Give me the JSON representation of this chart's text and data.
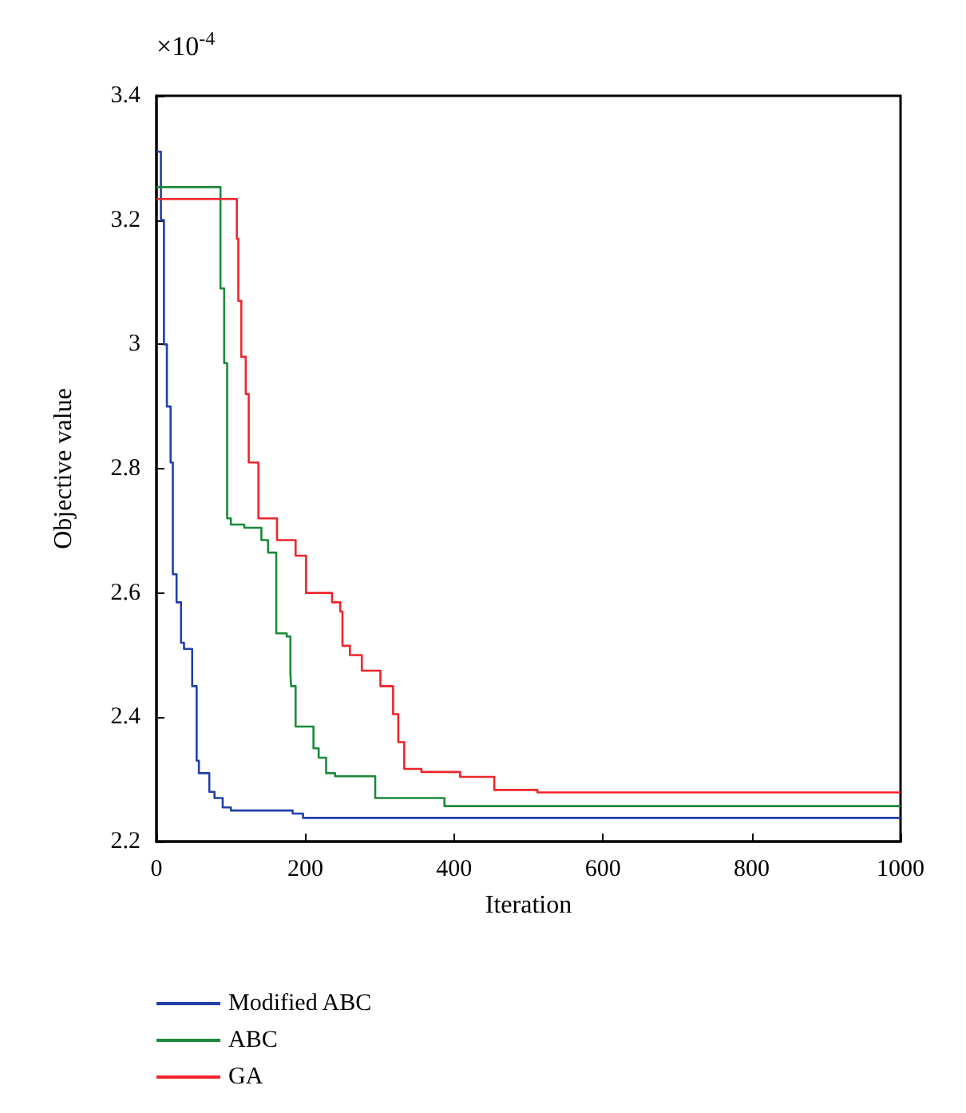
{
  "chart_data": {
    "type": "step",
    "xlabel": "Iteration",
    "ylabel": "Objective value",
    "annotations": [
      "×10$^{-4}$"
    ],
    "xlim": [
      0,
      1000
    ],
    "xticks": [
      0,
      200,
      400,
      600,
      800,
      1000
    ],
    "ylim": [
      2.2,
      3.4
    ],
    "yticks": [
      2.2,
      2.4,
      2.6,
      2.8,
      3,
      3.2,
      3.4
    ],
    "grid": false,
    "legend": "bottom left",
    "series": [
      {
        "name": "Modified ABC",
        "color": "#2140a8",
        "x": [
          0,
          4,
          6,
          10,
          14,
          19,
          22,
          27,
          33,
          37,
          48,
          54,
          57,
          71,
          78,
          89,
          100,
          183,
          197,
          1000
        ],
        "values": [
          3.31,
          3.31,
          3.2,
          3.0,
          2.9,
          2.81,
          2.63,
          2.585,
          2.52,
          2.51,
          2.45,
          2.33,
          2.31,
          2.28,
          2.27,
          2.255,
          2.25,
          2.245,
          2.238,
          2.238
        ]
      },
      {
        "name": "ABC",
        "color": "#1a8a3a",
        "x": [
          0,
          84,
          86,
          91,
          95,
          100,
          118,
          141,
          150,
          161,
          175,
          180,
          181,
          187,
          211,
          218,
          228,
          240,
          294,
          387,
          1000
        ],
        "values": [
          3.253,
          3.253,
          3.09,
          2.97,
          2.72,
          2.71,
          2.705,
          2.685,
          2.665,
          2.535,
          2.53,
          2.47,
          2.45,
          2.385,
          2.35,
          2.335,
          2.31,
          2.305,
          2.27,
          2.257,
          2.257
        ]
      },
      {
        "name": "GA",
        "color": "#f0242a",
        "x": [
          0,
          104,
          108,
          110,
          114,
          120,
          124,
          137,
          162,
          187,
          201,
          236,
          247,
          250,
          260,
          276,
          301,
          318,
          325,
          333,
          356,
          408,
          454,
          512,
          1000
        ],
        "values": [
          3.234,
          3.234,
          3.17,
          3.07,
          2.98,
          2.92,
          2.81,
          2.72,
          2.685,
          2.66,
          2.6,
          2.585,
          2.57,
          2.515,
          2.5,
          2.475,
          2.45,
          2.405,
          2.36,
          2.317,
          2.312,
          2.304,
          2.283,
          2.279,
          2.279
        ]
      }
    ]
  }
}
